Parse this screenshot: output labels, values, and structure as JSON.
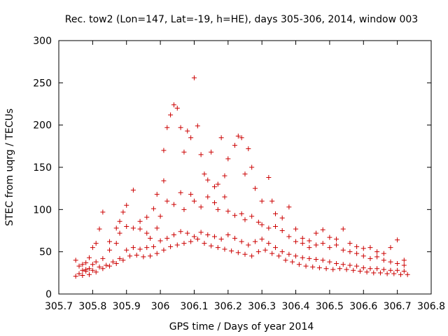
{
  "chart_data": {
    "type": "scatter",
    "title": "Rec. tow2 (Lon=147, Lat=-19, h=HE), days 305-306, 2014, window 003",
    "xlabel": "GPS time / Days of year 2014",
    "ylabel": "STEC from uqrg / TECUs",
    "xlim": [
      305.7,
      306.8
    ],
    "ylim": [
      0,
      300
    ],
    "xticks": [
      "305.7",
      "305.8",
      "305.9",
      "306",
      "306.1",
      "306.2",
      "306.3",
      "306.4",
      "306.5",
      "306.6",
      "306.7",
      "306.8"
    ],
    "yticks": [
      "0",
      "50",
      "100",
      "150",
      "200",
      "250",
      "300"
    ],
    "marker": "plus",
    "color": "#cc0000",
    "grid": false,
    "legend": "none",
    "series": [
      {
        "points": [
          [
            305.75,
            40
          ],
          [
            305.76,
            33
          ],
          [
            305.77,
            35
          ],
          [
            305.78,
            37
          ],
          [
            305.79,
            43
          ],
          [
            305.8,
            55
          ],
          [
            305.81,
            60
          ],
          [
            305.82,
            77
          ],
          [
            305.83,
            97
          ],
          [
            305.85,
            62
          ],
          [
            305.87,
            78
          ],
          [
            305.88,
            86
          ],
          [
            305.89,
            97
          ],
          [
            305.9,
            105
          ],
          [
            305.92,
            123
          ],
          [
            305.94,
            86
          ],
          [
            305.96,
            91
          ],
          [
            305.98,
            101
          ],
          [
            305.99,
            118
          ],
          [
            306.01,
            134
          ],
          [
            306.01,
            170
          ],
          [
            306.02,
            197
          ],
          [
            306.03,
            212
          ],
          [
            306.04,
            224
          ],
          [
            306.05,
            220
          ],
          [
            306.06,
            197
          ],
          [
            306.07,
            168
          ],
          [
            306.08,
            193
          ],
          [
            306.09,
            185
          ],
          [
            306.1,
            256
          ],
          [
            306.11,
            199
          ],
          [
            306.12,
            165
          ],
          [
            306.13,
            142
          ],
          [
            306.14,
            135
          ],
          [
            306.15,
            168
          ],
          [
            306.16,
            127
          ],
          [
            306.17,
            130
          ],
          [
            306.18,
            185
          ],
          [
            306.19,
            140
          ],
          [
            306.2,
            160
          ],
          [
            306.22,
            176
          ],
          [
            306.23,
            187
          ],
          [
            306.24,
            185
          ],
          [
            306.25,
            142
          ],
          [
            306.26,
            172
          ],
          [
            306.27,
            150
          ],
          [
            306.28,
            125
          ],
          [
            306.3,
            110
          ],
          [
            306.32,
            138
          ],
          [
            306.33,
            110
          ],
          [
            306.34,
            95
          ],
          [
            306.36,
            90
          ],
          [
            306.38,
            103
          ],
          [
            306.4,
            77
          ],
          [
            306.42,
            66
          ],
          [
            306.44,
            63
          ],
          [
            306.46,
            72
          ],
          [
            306.48,
            76
          ],
          [
            306.5,
            67
          ],
          [
            306.52,
            65
          ],
          [
            306.54,
            77
          ],
          [
            306.56,
            60
          ],
          [
            306.58,
            56
          ],
          [
            306.6,
            54
          ],
          [
            306.62,
            55
          ],
          [
            306.64,
            50
          ],
          [
            306.66,
            48
          ],
          [
            306.68,
            55
          ],
          [
            306.7,
            64
          ],
          [
            306.72,
            40
          ],
          [
            305.76,
            24
          ],
          [
            305.77,
            28
          ],
          [
            305.78,
            29
          ],
          [
            305.79,
            30
          ],
          [
            305.8,
            35
          ],
          [
            305.81,
            38
          ],
          [
            305.83,
            42
          ],
          [
            305.85,
            52
          ],
          [
            305.87,
            60
          ],
          [
            305.88,
            72
          ],
          [
            305.9,
            80
          ],
          [
            305.92,
            78
          ],
          [
            305.94,
            77
          ],
          [
            305.96,
            72
          ],
          [
            305.97,
            66
          ],
          [
            305.99,
            78
          ],
          [
            306.0,
            92
          ],
          [
            306.02,
            110
          ],
          [
            306.04,
            106
          ],
          [
            306.06,
            120
          ],
          [
            306.07,
            100
          ],
          [
            306.09,
            118
          ],
          [
            306.1,
            110
          ],
          [
            306.12,
            103
          ],
          [
            306.14,
            115
          ],
          [
            306.16,
            108
          ],
          [
            306.17,
            100
          ],
          [
            306.19,
            115
          ],
          [
            306.2,
            98
          ],
          [
            306.22,
            93
          ],
          [
            306.24,
            95
          ],
          [
            306.25,
            88
          ],
          [
            306.27,
            92
          ],
          [
            306.29,
            85
          ],
          [
            306.3,
            82
          ],
          [
            306.32,
            78
          ],
          [
            306.34,
            80
          ],
          [
            306.36,
            75
          ],
          [
            306.38,
            68
          ],
          [
            306.4,
            62
          ],
          [
            306.42,
            60
          ],
          [
            306.44,
            55
          ],
          [
            306.46,
            58
          ],
          [
            306.48,
            60
          ],
          [
            306.5,
            55
          ],
          [
            306.52,
            58
          ],
          [
            306.54,
            52
          ],
          [
            306.56,
            50
          ],
          [
            306.58,
            48
          ],
          [
            306.6,
            45
          ],
          [
            306.62,
            42
          ],
          [
            306.64,
            44
          ],
          [
            306.66,
            40
          ],
          [
            306.68,
            38
          ],
          [
            306.7,
            36
          ],
          [
            306.72,
            34
          ],
          [
            305.75,
            21
          ],
          [
            305.77,
            22
          ],
          [
            305.79,
            23
          ],
          [
            305.81,
            26
          ],
          [
            305.83,
            30
          ],
          [
            305.85,
            33
          ],
          [
            305.87,
            36
          ],
          [
            305.89,
            40
          ],
          [
            305.91,
            45
          ],
          [
            305.93,
            46
          ],
          [
            305.95,
            44
          ],
          [
            305.97,
            45
          ],
          [
            305.99,
            48
          ],
          [
            306.01,
            52
          ],
          [
            306.03,
            56
          ],
          [
            306.05,
            58
          ],
          [
            306.07,
            60
          ],
          [
            306.09,
            62
          ],
          [
            306.11,
            65
          ],
          [
            306.13,
            60
          ],
          [
            306.15,
            57
          ],
          [
            306.17,
            55
          ],
          [
            306.19,
            53
          ],
          [
            306.21,
            51
          ],
          [
            306.23,
            49
          ],
          [
            306.25,
            47
          ],
          [
            306.27,
            45
          ],
          [
            306.29,
            50
          ],
          [
            306.31,
            52
          ],
          [
            306.33,
            48
          ],
          [
            306.35,
            45
          ],
          [
            306.37,
            40
          ],
          [
            306.39,
            38
          ],
          [
            306.41,
            35
          ],
          [
            306.43,
            33
          ],
          [
            306.45,
            32
          ],
          [
            306.47,
            31
          ],
          [
            306.49,
            30
          ],
          [
            306.51,
            29
          ],
          [
            306.53,
            30
          ],
          [
            306.55,
            29
          ],
          [
            306.57,
            28
          ],
          [
            306.59,
            27
          ],
          [
            306.61,
            26
          ],
          [
            306.63,
            25
          ],
          [
            306.65,
            25
          ],
          [
            306.67,
            24
          ],
          [
            306.69,
            24
          ],
          [
            306.71,
            23
          ],
          [
            306.73,
            23
          ],
          [
            305.78,
            27
          ],
          [
            305.8,
            28
          ],
          [
            305.82,
            32
          ],
          [
            305.84,
            34
          ],
          [
            305.86,
            38
          ],
          [
            305.88,
            42
          ],
          [
            305.9,
            52
          ],
          [
            305.92,
            55
          ],
          [
            305.94,
            53
          ],
          [
            305.96,
            55
          ],
          [
            305.98,
            56
          ],
          [
            306.0,
            63
          ],
          [
            306.02,
            66
          ],
          [
            306.04,
            70
          ],
          [
            306.06,
            74
          ],
          [
            306.08,
            72
          ],
          [
            306.1,
            68
          ],
          [
            306.12,
            73
          ],
          [
            306.14,
            70
          ],
          [
            306.16,
            68
          ],
          [
            306.18,
            65
          ],
          [
            306.2,
            70
          ],
          [
            306.22,
            66
          ],
          [
            306.24,
            62
          ],
          [
            306.26,
            58
          ],
          [
            306.28,
            62
          ],
          [
            306.3,
            65
          ],
          [
            306.32,
            60
          ],
          [
            306.34,
            55
          ],
          [
            306.36,
            50
          ],
          [
            306.38,
            47
          ],
          [
            306.4,
            45
          ],
          [
            306.42,
            43
          ],
          [
            306.44,
            42
          ],
          [
            306.46,
            41
          ],
          [
            306.48,
            40
          ],
          [
            306.5,
            38
          ],
          [
            306.52,
            36
          ],
          [
            306.54,
            35
          ],
          [
            306.56,
            34
          ],
          [
            306.58,
            33
          ],
          [
            306.6,
            31
          ],
          [
            306.62,
            30
          ],
          [
            306.64,
            30
          ],
          [
            306.66,
            29
          ],
          [
            306.68,
            28
          ],
          [
            306.7,
            28
          ],
          [
            306.72,
            27
          ]
        ]
      }
    ]
  }
}
